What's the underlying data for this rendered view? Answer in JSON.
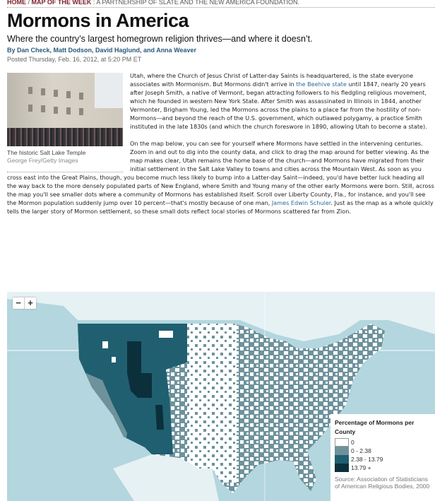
{
  "breadcrumb": {
    "home": "HOME",
    "sep": "/",
    "section": "MAP OF THE WEEK",
    "suffix": ": A PARTNERSHIP OF SLATE AND THE NEW AMERICA FOUNDATION."
  },
  "article": {
    "title": "Mormons in America",
    "dek": "Where the country’s largest homegrown religion thrives—and where it doesn’t.",
    "byline": "By Dan Check, Matt Dodson, David Haglund, and Anna Weaver",
    "posted": "Posted Thursday, Feb. 16, 2012, at 5:20 PM ET",
    "photo": {
      "caption": "The historic Salt Lake Temple",
      "credit": "George Frey/Getty Images"
    },
    "p1": {
      "a": "Utah, where the Church of Jesus Christ of Latter-day Saints is headquartered, is the state everyone associates with Mormonism. But Mormons didn't arrive in ",
      "link": "the Beehive state",
      "b": " until 1847, nearly 20 years after Joseph Smith, a native of Vermont, began attracting followers to his fledgling religious movement, which he founded in western New York State. After Smith was assassinated in Illinois in 1844, another Vermonter, Brigham Young, led the Mormons across the plains to a place far from the hostility of non-Mormons—and beyond the reach of the U.S. government, which outlawed polygamy, a practice Smith instituted in the late 1830s (and which the church foreswore in 1890, allowing Utah to become a state)."
    },
    "p2": {
      "a": "On the map below, you can see for yourself where Mormons have settled in the intervening centuries. Zoom in and out to dig into the county data, and click to drag the map around for better viewing. As the map makes clear, Utah remains the home base of the church—and Mormons have migrated from their initial settlement in the Salt Lake Valley to towns and cities across the Mountain West. As soon as you cross east into the Great Plains, though, you become much less likely to bump into a Latter-day Saint—indeed, you'd have better luck heading all the way back to the more densely populated parts of New England, where Smith and Young many of the other early Mormons were born. Still, across the map you'll see smaller dots where a community of Mormons has established itself. Scroll over Liberty County, Fla., for instance, and you'll see the Mormon population suddenly jump over 10 percent—that's mostly because of one man, ",
      "link": "James Edwin Schuler",
      "b": ". Just as the map as a whole quickly tells the larger story of Mormon settlement, so these small dots reflect local stories of Mormons scattered far from Zion."
    }
  },
  "map": {
    "zoom_out": "−",
    "zoom_in": "+",
    "colors": {
      "water": "#b3d6df",
      "land_outside": "#e6f1f4",
      "zero": "#ffffff",
      "low": "#6e929c",
      "mid": "#1f5f70",
      "high": "#0c2f3c"
    },
    "legend": {
      "title": "Percentage of Mormons per County",
      "items": [
        {
          "label": "0",
          "color": "#ffffff"
        },
        {
          "label": "0 - 2.38",
          "color": "#6e929c"
        },
        {
          "label": "2.38 - 13.79",
          "color": "#1f5f70"
        },
        {
          "label": "13.79 +",
          "color": "#0c2f3c"
        }
      ],
      "source": "Source: Association of Statisticians of American Religious Bodies, 2000"
    }
  }
}
